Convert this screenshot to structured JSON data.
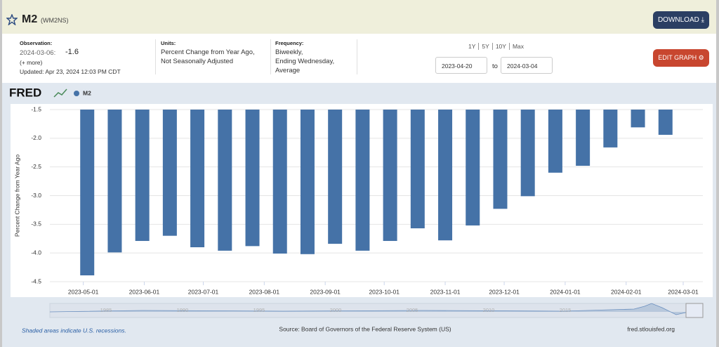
{
  "header": {
    "title": "M2",
    "series_id": "(WM2NS)",
    "download": "DOWNLOAD"
  },
  "info": {
    "observation_label": "Observation:",
    "observation_date": "2024-03-06:",
    "observation_value": -1.6,
    "more": "(+ more)",
    "updated": "Updated: Apr 23, 2024 12:03 PM CDT",
    "units_label": "Units:",
    "units": [
      "Percent Change from Year Ago,",
      "Not Seasonally Adjusted"
    ],
    "frequency_label": "Frequency:",
    "frequency": [
      "Biweekly,",
      "Ending Wednesday,",
      "Average"
    ],
    "range_options": [
      "1Y",
      "5Y",
      "10Y",
      "Max"
    ],
    "date_start": "2023-04-20",
    "date_to": "to",
    "date_end": "2024-03-04",
    "edit_graph": "EDIT GRAPH"
  },
  "chart_data": {
    "type": "bar",
    "logo": "FRED",
    "y_label": "Percent Change from Year Ago",
    "x": [
      "2023-05-03",
      "2023-05-17",
      "2023-05-31",
      "2023-06-14",
      "2023-06-28",
      "2023-07-12",
      "2023-07-26",
      "2023-08-09",
      "2023-08-23",
      "2023-09-06",
      "2023-09-20",
      "2023-10-04",
      "2023-10-18",
      "2023-11-01",
      "2023-11-15",
      "2023-11-29",
      "2023-12-13",
      "2023-12-27",
      "2024-01-10",
      "2024-01-24",
      "2024-02-07",
      "2024-02-21"
    ],
    "series": [
      {
        "name": "M2",
        "color": "#4572a7",
        "values": [
          -4.39,
          -3.99,
          -3.79,
          -3.7,
          -3.9,
          -3.96,
          -3.88,
          -4.01,
          -4.02,
          -3.84,
          -3.96,
          -3.79,
          -3.57,
          -3.78,
          -3.52,
          -3.23,
          -3.01,
          -2.6,
          -2.48,
          -2.16,
          -1.81,
          -1.94
        ]
      }
    ],
    "xlim": [
      "2023-04-14",
      "2024-03-11"
    ],
    "xticks": [
      "2023-05-01",
      "2023-06-01",
      "2023-07-01",
      "2023-08-01",
      "2023-09-01",
      "2023-10-01",
      "2023-11-01",
      "2023-12-01",
      "2024-01-01",
      "2024-02-01",
      "2024-03-01"
    ],
    "ylim": [
      -4.5,
      -1.5
    ],
    "yticks": [
      -1.5,
      {
        "value": -2,
        "label": "-2.0"
      },
      -2.5,
      {
        "value": -3,
        "label": "-3.0"
      },
      -3.5,
      {
        "value": -4,
        "label": "-4.0"
      },
      -4.5
    ],
    "grid": true,
    "legend": "top-left",
    "navigator_labels": [
      "1985",
      "1990",
      "1995",
      "2000",
      "2005",
      "2010",
      "2015"
    ],
    "recession_note": "Shaded areas indicate U.S. recessions.",
    "source": "Source: Board of Governors of the Federal Reserve System (US)",
    "site": "fred.stlouisfed.org"
  }
}
